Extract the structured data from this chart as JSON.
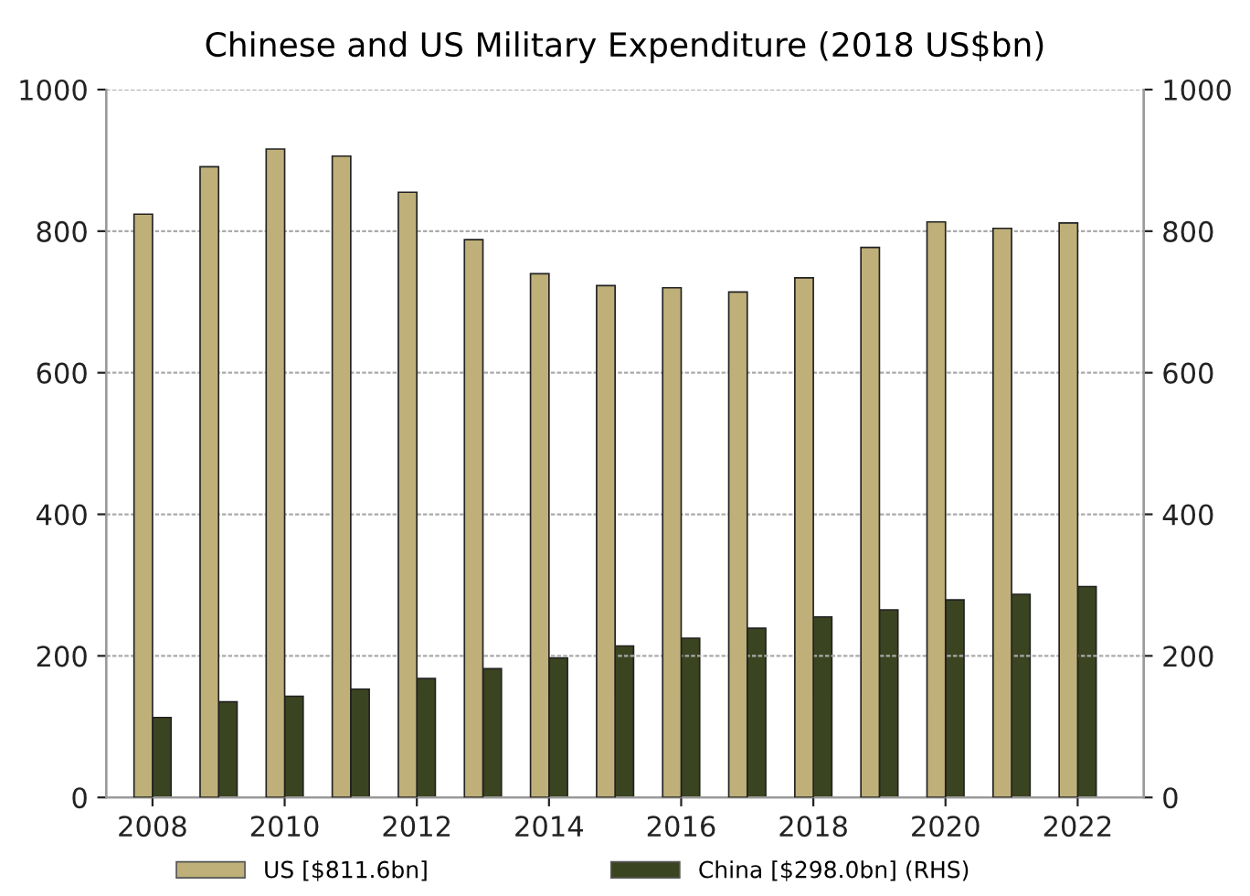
{
  "chart_data": {
    "type": "bar",
    "title": "Chinese and US Military Expenditure (2018 US$bn)",
    "x": [
      2008,
      2009,
      2010,
      2011,
      2012,
      2013,
      2014,
      2015,
      2016,
      2017,
      2018,
      2019,
      2020,
      2021,
      2022
    ],
    "series": [
      {
        "name": "US [$811.6bn]",
        "color": "#bfb07a",
        "values": [
          824,
          891,
          916,
          906,
          855,
          788,
          740,
          723,
          720,
          714,
          734,
          777,
          813,
          804,
          811.6
        ]
      },
      {
        "name": "China [$298.0bn] (RHS)",
        "color": "#3b4420",
        "axis": "y2",
        "values": [
          113,
          135,
          143,
          153,
          168,
          182,
          197,
          214,
          225,
          239,
          255,
          265,
          279,
          287,
          298.0
        ]
      }
    ],
    "xlim": [
      2007.3,
      2023.0
    ],
    "xticks": [
      2008,
      2010,
      2012,
      2014,
      2016,
      2018,
      2020,
      2022
    ],
    "ylim": [
      0,
      1000
    ],
    "yticks": [
      0,
      200,
      400,
      600,
      800,
      1000
    ],
    "y2lim": [
      0,
      1000
    ],
    "y2ticks": [
      0,
      200,
      400,
      600,
      800,
      1000
    ],
    "grid": "y",
    "legend": "bottom"
  }
}
